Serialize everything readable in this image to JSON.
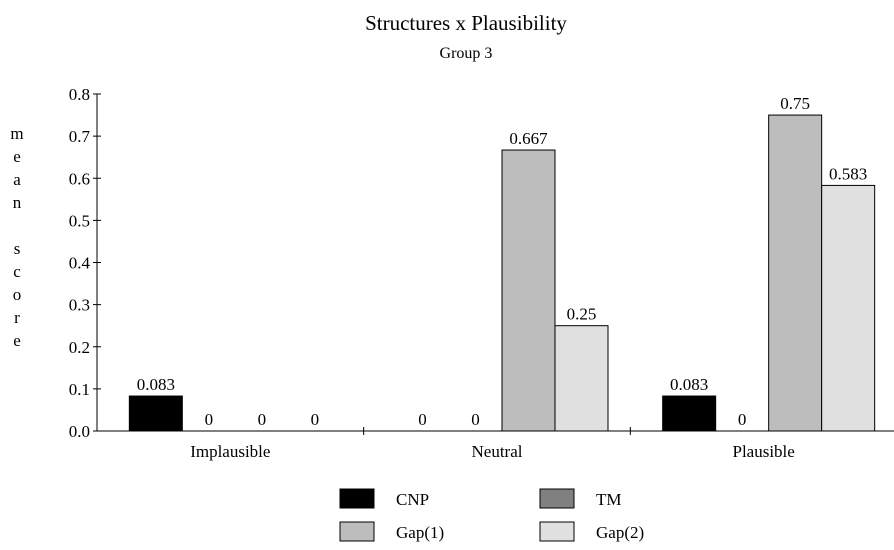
{
  "chart_data": {
    "type": "bar",
    "title": "Structures x Plausibility",
    "subtitle": "Group 3",
    "ylabel": "mean score",
    "xlabel": "",
    "ylim": [
      0,
      0.8
    ],
    "yticks": [
      "0.0",
      "0.1",
      "0.2",
      "0.3",
      "0.4",
      "0.5",
      "0.6",
      "0.7",
      "0.8"
    ],
    "categories": [
      "Implausible",
      "Neutral",
      "Plausible"
    ],
    "series": [
      {
        "name": "CNP",
        "color": "#000000",
        "values": [
          0.083,
          0,
          0.083
        ],
        "labels": [
          "0.083",
          "0",
          "0.083"
        ]
      },
      {
        "name": "TM",
        "color": "#808080",
        "values": [
          0,
          0,
          0
        ],
        "labels": [
          "0",
          "0",
          "0"
        ]
      },
      {
        "name": "Gap(1)",
        "color": "#bdbdbd",
        "values": [
          0,
          0.667,
          0.75
        ],
        "labels": [
          "0",
          "0.667",
          "0.75"
        ]
      },
      {
        "name": "Gap(2)",
        "color": "#e0e0e0",
        "values": [
          0,
          0.25,
          0.583
        ],
        "labels": [
          "0",
          "0.25",
          "0.583"
        ]
      }
    ],
    "grid": false,
    "legend_position": "bottom"
  }
}
